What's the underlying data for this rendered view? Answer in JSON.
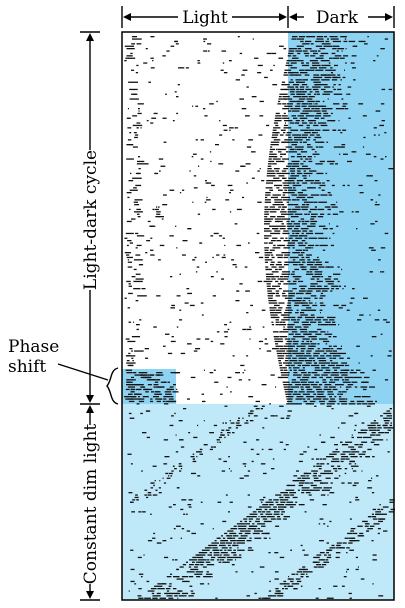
{
  "labels": {
    "light": "Light",
    "dark": "Dark",
    "light_dark_cycle": "Light-dark cycle",
    "constant_dim_light": "Constant dim light",
    "phase_shift_line1": "Phase",
    "phase_shift_line2": "shift"
  },
  "colors": {
    "dark_band": "#8fd3f2",
    "dim_light": "#bfe8f8",
    "activity": "#111111",
    "frame": "#000000"
  }
}
